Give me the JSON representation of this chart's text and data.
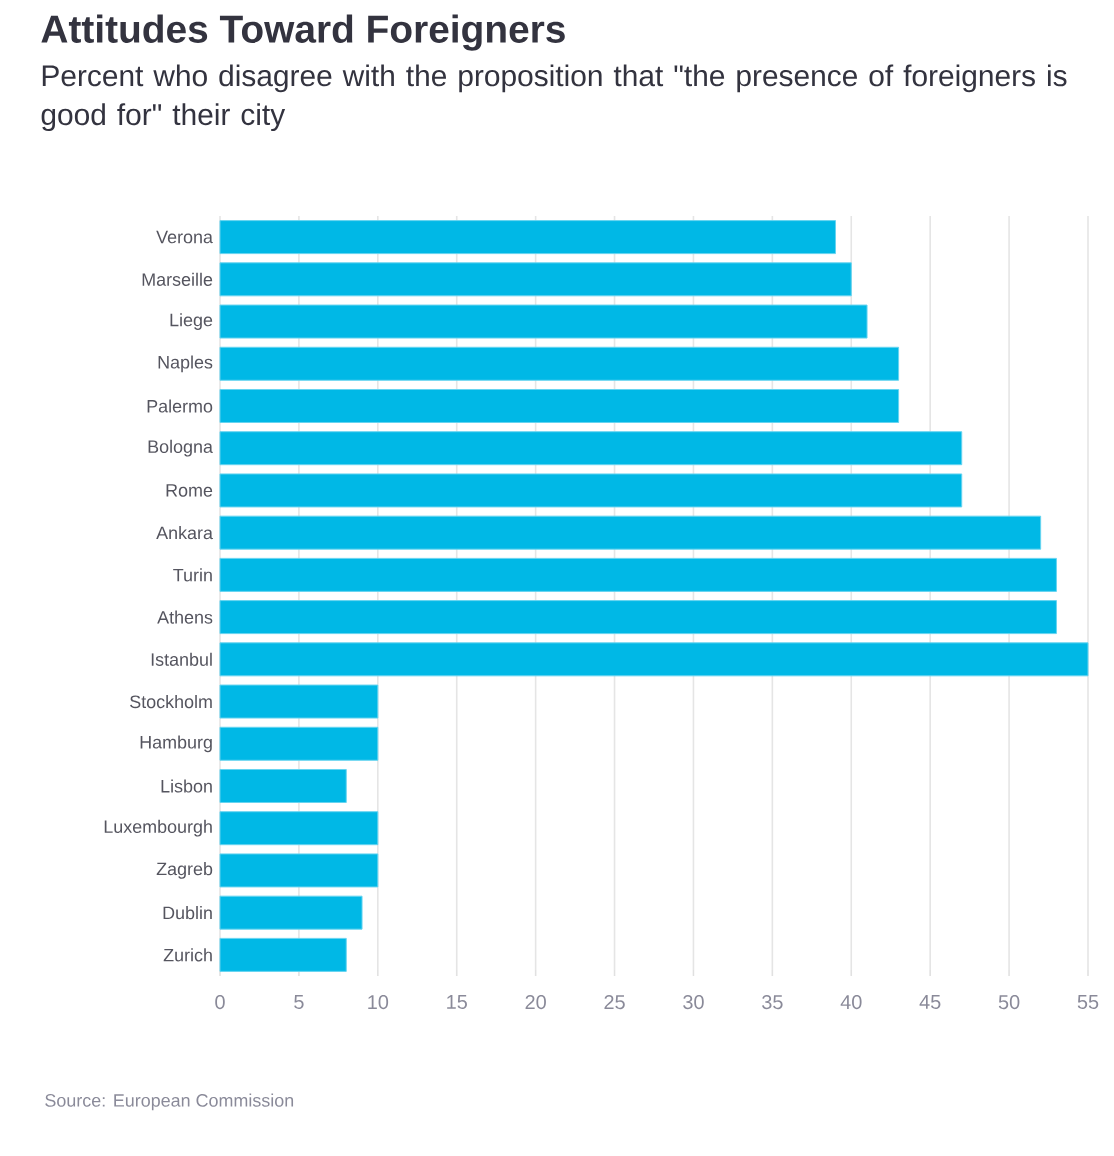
{
  "chart_data": {
    "type": "bar",
    "orientation": "horizontal",
    "title": "Attitudes Toward Foreigners",
    "subtitle": "Percent who disagree with the proposition that \"the presence of foreigners is good for\" their city",
    "categories": [
      "Verona",
      "Marseille",
      "Liege",
      "Naples",
      "Palermo",
      "Bologna",
      "Rome",
      "Ankara",
      "Turin",
      "Athens",
      "Istanbul",
      "Stockholm",
      "Hamburg",
      "Lisbon",
      "Luxembourgh",
      "Zagreb",
      "Dublin",
      "Zurich"
    ],
    "values": [
      39,
      40,
      41,
      43,
      43,
      47,
      47,
      52,
      53,
      53,
      55,
      10,
      10,
      8,
      10,
      10,
      9,
      8
    ],
    "color": "#00b8e6",
    "xlim": [
      0,
      55
    ],
    "xticks": [
      0,
      5,
      10,
      15,
      20,
      25,
      30,
      35,
      40,
      45,
      50,
      55
    ],
    "grid": "x",
    "annotations": [
      "Source: European Commission"
    ]
  }
}
